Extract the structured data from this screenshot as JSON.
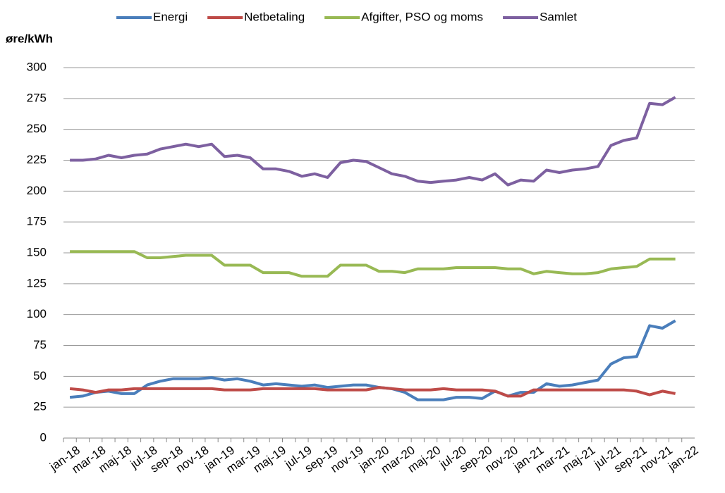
{
  "chart_data": {
    "type": "line",
    "y_label": "øre/kWh",
    "categories": [
      "jan-18",
      null,
      "mar-18",
      null,
      "maj-18",
      null,
      "jul-18",
      null,
      "sep-18",
      null,
      "nov-18",
      null,
      "jan-19",
      null,
      "mar-19",
      null,
      "maj-19",
      null,
      "jul-19",
      null,
      "sep-19",
      null,
      "nov-19",
      null,
      "jan-20",
      null,
      "mar-20",
      null,
      "maj-20",
      null,
      "jul-20",
      null,
      "sep-20",
      null,
      "nov-20",
      null,
      "jan-21",
      null,
      "mar-21",
      null,
      "maj-21",
      null,
      "jul-21",
      null,
      "sep-21",
      null,
      "nov-21",
      null,
      "jan-22"
    ],
    "series": [
      {
        "name": "Energi",
        "color": "#4a7ebb",
        "values": [
          33,
          34,
          37,
          38,
          36,
          36,
          43,
          46,
          48,
          48,
          48,
          49,
          47,
          48,
          46,
          43,
          44,
          43,
          42,
          43,
          41,
          42,
          43,
          43,
          41,
          40,
          37,
          31,
          31,
          31,
          33,
          33,
          32,
          38,
          34,
          37,
          37,
          44,
          42,
          43,
          45,
          47,
          60,
          65,
          66,
          91,
          89,
          95,
          null
        ]
      },
      {
        "name": "Netbetaling",
        "color": "#be4b48",
        "values": [
          40,
          39,
          37,
          39,
          39,
          40,
          40,
          40,
          40,
          40,
          40,
          40,
          39,
          39,
          39,
          40,
          40,
          40,
          40,
          40,
          39,
          39,
          39,
          39,
          41,
          40,
          39,
          39,
          39,
          40,
          39,
          39,
          39,
          38,
          34,
          34,
          39,
          39,
          39,
          39,
          39,
          39,
          39,
          39,
          38,
          35,
          38,
          36,
          null
        ]
      },
      {
        "name": "Afgifter, PSO og moms",
        "color": "#98b954",
        "values": [
          151,
          151,
          151,
          151,
          151,
          151,
          146,
          146,
          147,
          148,
          148,
          148,
          140,
          140,
          140,
          134,
          134,
          134,
          131,
          131,
          131,
          140,
          140,
          140,
          135,
          135,
          134,
          137,
          137,
          137,
          138,
          138,
          138,
          138,
          137,
          137,
          133,
          135,
          134,
          133,
          133,
          134,
          137,
          138,
          139,
          145,
          145,
          145,
          null
        ]
      },
      {
        "name": "Samlet",
        "color": "#7d60a0",
        "values": [
          225,
          225,
          226,
          229,
          227,
          229,
          230,
          234,
          236,
          238,
          236,
          238,
          228,
          229,
          227,
          218,
          218,
          216,
          212,
          214,
          211,
          223,
          225,
          224,
          219,
          214,
          212,
          208,
          207,
          208,
          209,
          211,
          209,
          214,
          205,
          209,
          208,
          217,
          215,
          217,
          218,
          220,
          237,
          241,
          243,
          271,
          270,
          276,
          null
        ]
      }
    ],
    "ylim": [
      0,
      300
    ],
    "yticks": [
      0,
      25,
      50,
      75,
      100,
      125,
      150,
      175,
      200,
      225,
      250,
      275,
      300
    ],
    "grid": true
  }
}
